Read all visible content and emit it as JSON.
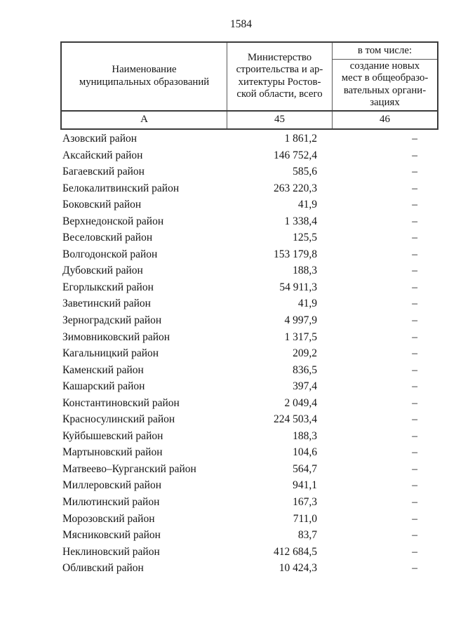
{
  "page": {
    "number": "1584"
  },
  "table": {
    "header": {
      "col_a": "Наименование\nмуниципальных образований",
      "col_45": "Министерство\nстроительства и ар-\nхитектуры Ростов-\nской области, всего",
      "including": "в том числе:",
      "col_46": "создание новых\nмест в общеобразо-\nвательных органи-\nзациях",
      "letter_a": "А",
      "num_45": "45",
      "num_46": "46"
    },
    "rows": [
      {
        "name": "Азовский район",
        "total": "1 861,2",
        "extra": "–"
      },
      {
        "name": "Аксайский район",
        "total": "146 752,4",
        "extra": "–"
      },
      {
        "name": "Багаевский район",
        "total": "585,6",
        "extra": "–"
      },
      {
        "name": "Белокалитвинский район",
        "total": "263 220,3",
        "extra": "–"
      },
      {
        "name": "Боковский район",
        "total": "41,9",
        "extra": "–"
      },
      {
        "name": "Верхнедонской район",
        "total": "1 338,4",
        "extra": "–"
      },
      {
        "name": "Веселовский район",
        "total": "125,5",
        "extra": "–"
      },
      {
        "name": "Волгодонской район",
        "total": "153 179,8",
        "extra": "–"
      },
      {
        "name": "Дубовский район",
        "total": "188,3",
        "extra": "–"
      },
      {
        "name": "Егорлыкский район",
        "total": "54 911,3",
        "extra": "–"
      },
      {
        "name": "Заветинский район",
        "total": "41,9",
        "extra": "–"
      },
      {
        "name": "Зерноградский район",
        "total": "4 997,9",
        "extra": "–"
      },
      {
        "name": "Зимовниковский район",
        "total": "1 317,5",
        "extra": "–"
      },
      {
        "name": "Кагальницкий район",
        "total": "209,2",
        "extra": "–"
      },
      {
        "name": "Каменский район",
        "total": "836,5",
        "extra": "–"
      },
      {
        "name": "Кашарский район",
        "total": "397,4",
        "extra": "–"
      },
      {
        "name": "Константиновский район",
        "total": "2 049,4",
        "extra": "–"
      },
      {
        "name": "Красносулинский район",
        "total": "224 503,4",
        "extra": "–"
      },
      {
        "name": "Куйбышевский район",
        "total": "188,3",
        "extra": "–"
      },
      {
        "name": "Мартыновский район",
        "total": "104,6",
        "extra": "–"
      },
      {
        "name": "Матвеево–Курганский район",
        "total": "564,7",
        "extra": "–"
      },
      {
        "name": "Миллеровский район",
        "total": "941,1",
        "extra": "–"
      },
      {
        "name": "Милютинский район",
        "total": "167,3",
        "extra": "–"
      },
      {
        "name": "Морозовский район",
        "total": "711,0",
        "extra": "–"
      },
      {
        "name": "Мясниковский район",
        "total": "83,7",
        "extra": "–"
      },
      {
        "name": "Неклиновский район",
        "total": "412 684,5",
        "extra": "–"
      },
      {
        "name": "Обливский район",
        "total": "10 424,3",
        "extra": "–"
      }
    ]
  }
}
